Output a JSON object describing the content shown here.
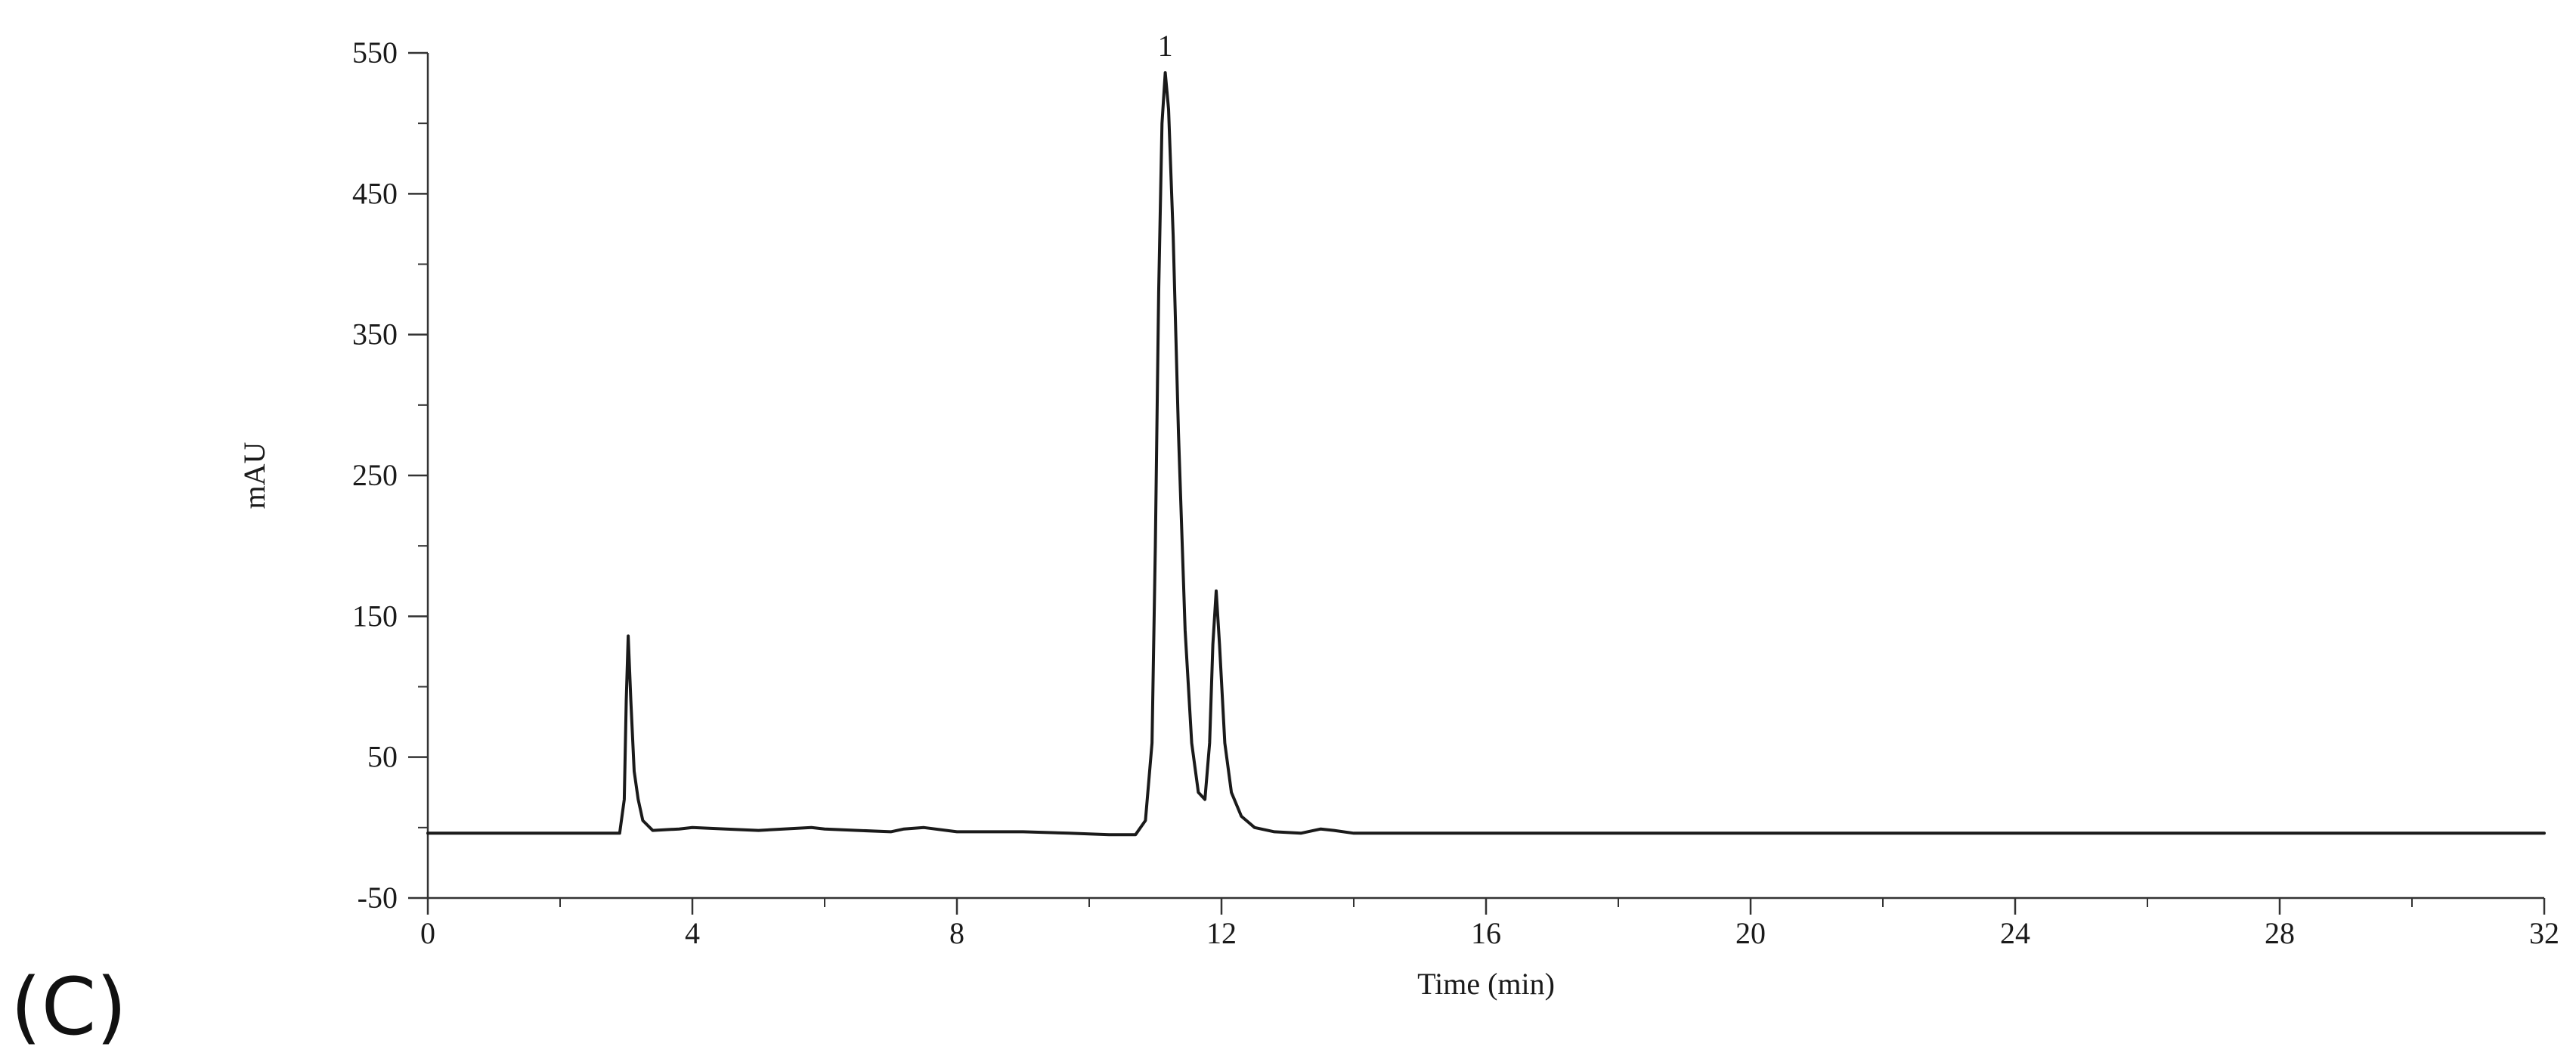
{
  "panel_label": "(C)",
  "chart_data": {
    "type": "line",
    "title": "",
    "xlabel": "Time (min)",
    "ylabel": "mAU",
    "xlim": [
      0,
      32
    ],
    "ylim": [
      -50,
      550
    ],
    "x_ticks": [
      0,
      4,
      8,
      12,
      16,
      20,
      24,
      28,
      32
    ],
    "y_ticks": [
      -50,
      50,
      150,
      250,
      350,
      450,
      550
    ],
    "grid": false,
    "legend": "none",
    "line_color": "#1a1a1a",
    "series": [
      {
        "points": [
          [
            0,
            -4
          ],
          [
            2.9,
            -4
          ],
          [
            2.97,
            20
          ],
          [
            3.0,
            90
          ],
          [
            3.03,
            136
          ],
          [
            3.07,
            90
          ],
          [
            3.12,
            40
          ],
          [
            3.18,
            20
          ],
          [
            3.25,
            5
          ],
          [
            3.4,
            -2
          ],
          [
            3.8,
            -1
          ],
          [
            4.0,
            0
          ],
          [
            4.5,
            -1
          ],
          [
            5.0,
            -2
          ],
          [
            5.8,
            0
          ],
          [
            6.0,
            -1
          ],
          [
            6.5,
            -2
          ],
          [
            7.0,
            -3
          ],
          [
            7.2,
            -1
          ],
          [
            7.5,
            0
          ],
          [
            8.0,
            -3
          ],
          [
            9.0,
            -3
          ],
          [
            9.7,
            -4
          ],
          [
            10.3,
            -5
          ],
          [
            10.7,
            -5
          ],
          [
            10.85,
            5
          ],
          [
            10.95,
            60
          ],
          [
            11.0,
            200
          ],
          [
            11.05,
            380
          ],
          [
            11.1,
            500
          ],
          [
            11.15,
            536
          ],
          [
            11.2,
            510
          ],
          [
            11.27,
            420
          ],
          [
            11.35,
            280
          ],
          [
            11.45,
            140
          ],
          [
            11.55,
            60
          ],
          [
            11.65,
            25
          ],
          [
            11.75,
            20
          ],
          [
            11.82,
            60
          ],
          [
            11.87,
            130
          ],
          [
            11.92,
            168
          ],
          [
            11.97,
            130
          ],
          [
            12.05,
            60
          ],
          [
            12.15,
            25
          ],
          [
            12.3,
            8
          ],
          [
            12.5,
            0
          ],
          [
            12.8,
            -3
          ],
          [
            13.2,
            -4
          ],
          [
            13.5,
            -1
          ],
          [
            13.7,
            -2
          ],
          [
            14.0,
            -4
          ],
          [
            15.0,
            -4
          ],
          [
            16.0,
            -4
          ],
          [
            32.0,
            -4
          ]
        ]
      }
    ],
    "annotations": [
      {
        "text": "1",
        "x": 11.15,
        "y": 536
      }
    ]
  }
}
